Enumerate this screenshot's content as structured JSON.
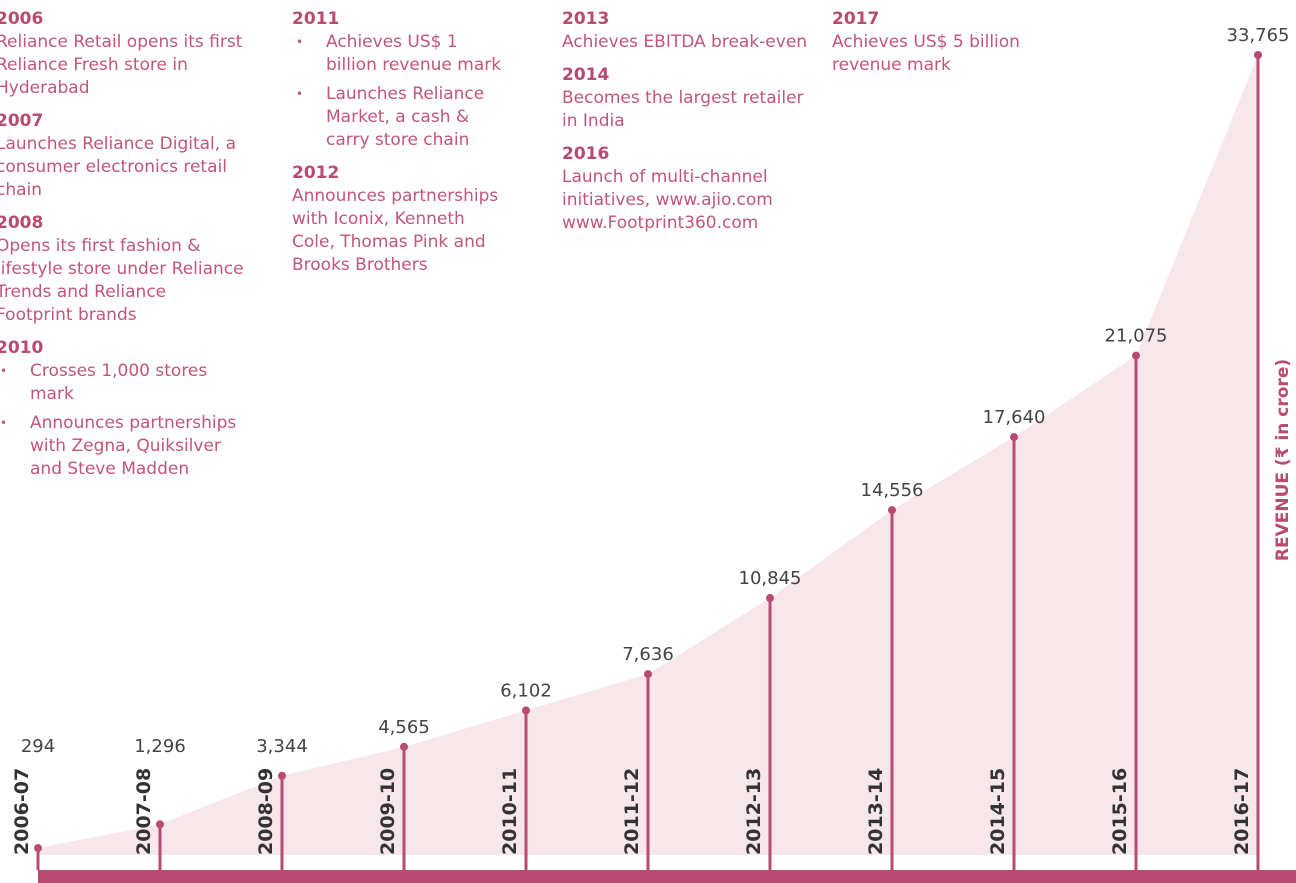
{
  "chart_data": {
    "type": "area",
    "categories": [
      "2006-07",
      "2007-08",
      "2008-09",
      "2009-10",
      "2010-11",
      "2011-12",
      "2012-13",
      "2013-14",
      "2014-15",
      "2015-16",
      "2016-17"
    ],
    "values": [
      294,
      1296,
      3344,
      4565,
      6102,
      7636,
      10845,
      14556,
      17640,
      21075,
      33765
    ],
    "value_labels": [
      "294",
      "1,296",
      "3,344",
      "4,565",
      "6,102",
      "7,636",
      "10,845",
      "14,556",
      "17,640",
      "21,075",
      "33,765"
    ],
    "color": "#b94a72",
    "area_color": "#f7e6ea",
    "y_axis_label": "REVENUE (₹ in crore)",
    "milestones": [
      {
        "year": "2006",
        "text": "Reliance Retail opens its first Reliance Fresh store in Hyderabad"
      },
      {
        "year": "2007",
        "text": "Launches Reliance Digital, a consumer electronics retail chain"
      },
      {
        "year": "2008",
        "text": "Opens its first fashion & lifestyle store under Reliance Trends and Reliance Footprint brands"
      },
      {
        "year": "2010",
        "items": [
          "Crosses 1,000 stores mark",
          "Announces partnerships with Zegna, Quiksilver and Steve Madden"
        ]
      },
      {
        "year": "2011",
        "items": [
          "Achieves US$ 1 billion revenue mark",
          "Launches Reliance Market, a cash & carry store chain"
        ]
      },
      {
        "year": "2012",
        "text": "Announces partnerships with Iconix, Kenneth Cole, Thomas Pink and Brooks Brothers"
      },
      {
        "year": "2013",
        "text": "Achieves EBITDA break-even"
      },
      {
        "year": "2014",
        "text": "Becomes the largest retailer in India"
      },
      {
        "year": "2016",
        "text": "Launch of multi-channel initiatives, www.ajio.com www.Footprint360.com"
      },
      {
        "year": "2017",
        "text": "Achieves US$ 5 billion revenue mark"
      }
    ]
  }
}
